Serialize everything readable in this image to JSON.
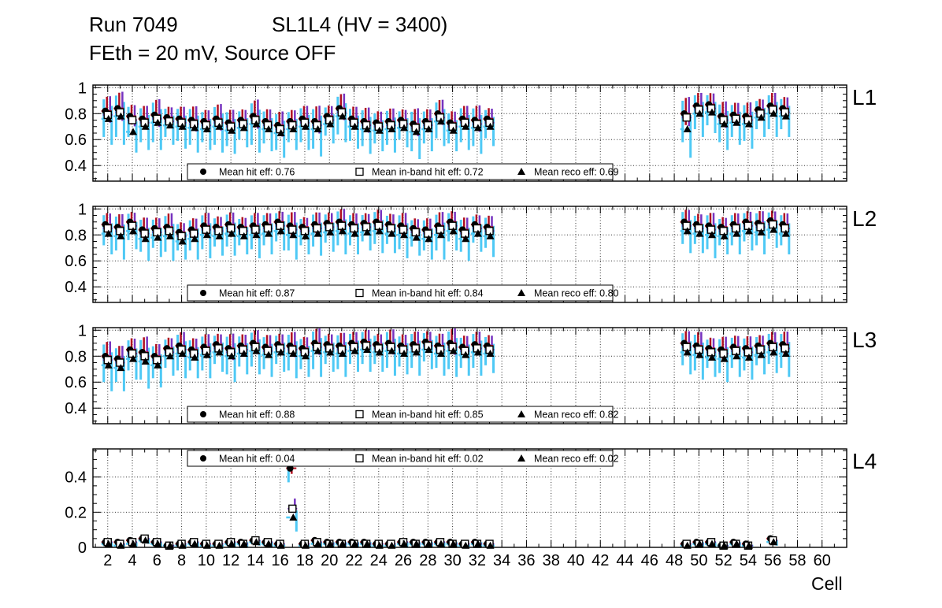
{
  "header": {
    "run_title": "Run 7049",
    "layer_title": "SL1L4 (HV = 3400)",
    "condition_line": "FEth = 20 mV, Source OFF"
  },
  "axes": {
    "x_label": "Cell",
    "x_range": [
      0.8,
      62
    ],
    "x_ticks": [
      2,
      4,
      6,
      8,
      10,
      12,
      14,
      16,
      18,
      20,
      22,
      24,
      26,
      28,
      30,
      32,
      34,
      36,
      38,
      40,
      42,
      44,
      46,
      48,
      50,
      52,
      54,
      56,
      58,
      60
    ]
  },
  "colors": {
    "hit_errbar": "#b01020",
    "inband_errbar": "#7632bf",
    "reco_errbar": "#4ec9f5",
    "marker": "#000000",
    "grid": "#333333",
    "frame": "#000000"
  },
  "legend_markers": {
    "hit": "filled-circle",
    "inband": "open-square",
    "reco": "filled-triangle"
  },
  "chart_data": [
    {
      "type": "scatter",
      "label": "L1",
      "legend": {
        "hit": "Mean hit  eff: 0.76",
        "inband": "Mean in-band hit eff: 0.72",
        "reco": "Mean reco eff: 0.69"
      },
      "legend_position": "bottom",
      "y_range": [
        0.28,
        1.02
      ],
      "y_tick_values": [
        0.4,
        0.6,
        0.8,
        1
      ],
      "y_tick_labels": [
        "0.4",
        "0.6",
        "0.8",
        "1"
      ],
      "cells": [
        2,
        3,
        4,
        5,
        6,
        7,
        8,
        9,
        10,
        11,
        12,
        13,
        14,
        15,
        16,
        17,
        18,
        19,
        20,
        21,
        22,
        23,
        24,
        25,
        26,
        27,
        28,
        29,
        30,
        31,
        32,
        33,
        49,
        50,
        51,
        52,
        53,
        54,
        55,
        56,
        57
      ],
      "hit": [
        0.82,
        0.84,
        0.78,
        0.76,
        0.79,
        0.77,
        0.76,
        0.75,
        0.74,
        0.76,
        0.73,
        0.75,
        0.78,
        0.74,
        0.71,
        0.74,
        0.76,
        0.74,
        0.78,
        0.84,
        0.76,
        0.74,
        0.73,
        0.74,
        0.75,
        0.72,
        0.74,
        0.8,
        0.73,
        0.76,
        0.75,
        0.76,
        0.8,
        0.86,
        0.87,
        0.78,
        0.79,
        0.78,
        0.83,
        0.86,
        0.84
      ],
      "inband": [
        0.79,
        0.81,
        0.75,
        0.73,
        0.76,
        0.74,
        0.73,
        0.72,
        0.71,
        0.73,
        0.7,
        0.72,
        0.75,
        0.71,
        0.68,
        0.71,
        0.73,
        0.71,
        0.75,
        0.81,
        0.73,
        0.71,
        0.7,
        0.71,
        0.72,
        0.69,
        0.71,
        0.77,
        0.7,
        0.73,
        0.72,
        0.73,
        0.77,
        0.83,
        0.84,
        0.75,
        0.76,
        0.75,
        0.8,
        0.83,
        0.81
      ],
      "reco": [
        0.76,
        0.78,
        0.66,
        0.7,
        0.73,
        0.71,
        0.7,
        0.69,
        0.68,
        0.7,
        0.67,
        0.69,
        0.72,
        0.68,
        0.65,
        0.68,
        0.7,
        0.68,
        0.72,
        0.78,
        0.7,
        0.68,
        0.67,
        0.68,
        0.69,
        0.66,
        0.68,
        0.74,
        0.67,
        0.7,
        0.69,
        0.7,
        0.68,
        0.8,
        0.81,
        0.72,
        0.73,
        0.72,
        0.77,
        0.8,
        0.78
      ],
      "err": [
        0.2,
        0.22,
        0.16,
        0.18,
        0.21,
        0.15,
        0.17,
        0.19,
        0.16,
        0.2,
        0.18,
        0.15,
        0.22,
        0.17,
        0.19,
        0.16,
        0.18,
        0.21,
        0.15,
        0.2,
        0.17,
        0.19,
        0.16,
        0.18,
        0.15,
        0.21,
        0.17,
        0.19,
        0.16,
        0.18,
        0.2,
        0.15,
        0.22,
        0.18,
        0.16,
        0.2,
        0.17,
        0.19,
        0.15,
        0.18,
        0.16
      ]
    },
    {
      "type": "scatter",
      "label": "L2",
      "legend": {
        "hit": "Mean hit  eff: 0.87",
        "inband": "Mean in-band hit eff: 0.84",
        "reco": "Mean reco eff: 0.80"
      },
      "legend_position": "bottom",
      "y_range": [
        0.28,
        1.02
      ],
      "y_tick_values": [
        0.4,
        0.6,
        0.8,
        1
      ],
      "y_tick_labels": [
        "0.4",
        "0.6",
        "0.8",
        "1"
      ],
      "cells": [
        2,
        3,
        4,
        5,
        6,
        7,
        8,
        9,
        10,
        11,
        12,
        13,
        14,
        15,
        16,
        17,
        18,
        19,
        20,
        21,
        22,
        23,
        24,
        25,
        26,
        27,
        28,
        29,
        30,
        31,
        32,
        33,
        49,
        50,
        51,
        52,
        53,
        54,
        55,
        56,
        57
      ],
      "hit": [
        0.88,
        0.86,
        0.9,
        0.84,
        0.85,
        0.86,
        0.82,
        0.84,
        0.87,
        0.86,
        0.88,
        0.86,
        0.87,
        0.88,
        0.9,
        0.87,
        0.86,
        0.88,
        0.89,
        0.9,
        0.88,
        0.89,
        0.9,
        0.88,
        0.87,
        0.85,
        0.84,
        0.87,
        0.9,
        0.84,
        0.88,
        0.86,
        0.9,
        0.88,
        0.87,
        0.86,
        0.88,
        0.9,
        0.89,
        0.91,
        0.88
      ],
      "inband": [
        0.85,
        0.83,
        0.87,
        0.81,
        0.82,
        0.83,
        0.79,
        0.81,
        0.84,
        0.83,
        0.85,
        0.83,
        0.84,
        0.85,
        0.87,
        0.84,
        0.83,
        0.85,
        0.86,
        0.87,
        0.85,
        0.86,
        0.87,
        0.85,
        0.84,
        0.82,
        0.81,
        0.84,
        0.87,
        0.81,
        0.85,
        0.83,
        0.87,
        0.85,
        0.84,
        0.83,
        0.85,
        0.87,
        0.86,
        0.88,
        0.85
      ],
      "reco": [
        0.81,
        0.79,
        0.83,
        0.77,
        0.78,
        0.79,
        0.75,
        0.77,
        0.8,
        0.79,
        0.81,
        0.79,
        0.8,
        0.81,
        0.83,
        0.8,
        0.79,
        0.81,
        0.82,
        0.83,
        0.81,
        0.82,
        0.83,
        0.81,
        0.8,
        0.78,
        0.77,
        0.8,
        0.83,
        0.77,
        0.81,
        0.79,
        0.83,
        0.81,
        0.8,
        0.79,
        0.81,
        0.83,
        0.82,
        0.84,
        0.81
      ],
      "err": [
        0.16,
        0.18,
        0.14,
        0.17,
        0.15,
        0.19,
        0.14,
        0.16,
        0.18,
        0.15,
        0.17,
        0.14,
        0.18,
        0.16,
        0.15,
        0.19,
        0.14,
        0.17,
        0.15,
        0.18,
        0.16,
        0.14,
        0.17,
        0.15,
        0.18,
        0.14,
        0.16,
        0.19,
        0.15,
        0.17,
        0.14,
        0.16,
        0.17,
        0.15,
        0.18,
        0.14,
        0.16,
        0.15,
        0.17,
        0.14,
        0.16
      ]
    },
    {
      "type": "scatter",
      "label": "L3",
      "legend": {
        "hit": "Mean hit  eff: 0.88",
        "inband": "Mean in-band hit eff: 0.85",
        "reco": "Mean reco eff: 0.82"
      },
      "legend_position": "bottom",
      "y_range": [
        0.28,
        1.02
      ],
      "y_tick_values": [
        0.4,
        0.6,
        0.8,
        1
      ],
      "y_tick_labels": [
        "0.4",
        "0.6",
        "0.8",
        "1"
      ],
      "cells": [
        2,
        3,
        4,
        5,
        6,
        7,
        8,
        9,
        10,
        11,
        12,
        13,
        14,
        15,
        16,
        17,
        18,
        19,
        20,
        21,
        22,
        23,
        24,
        25,
        26,
        27,
        28,
        29,
        30,
        31,
        32,
        33,
        49,
        50,
        51,
        52,
        53,
        54,
        55,
        56,
        57
      ],
      "hit": [
        0.8,
        0.78,
        0.85,
        0.83,
        0.8,
        0.86,
        0.88,
        0.85,
        0.87,
        0.89,
        0.86,
        0.88,
        0.9,
        0.87,
        0.89,
        0.88,
        0.86,
        0.9,
        0.89,
        0.88,
        0.9,
        0.91,
        0.89,
        0.9,
        0.88,
        0.89,
        0.91,
        0.88,
        0.9,
        0.87,
        0.89,
        0.88,
        0.9,
        0.88,
        0.86,
        0.85,
        0.87,
        0.86,
        0.88,
        0.9,
        0.89
      ],
      "inband": [
        0.77,
        0.75,
        0.82,
        0.8,
        0.77,
        0.83,
        0.85,
        0.82,
        0.84,
        0.86,
        0.83,
        0.85,
        0.87,
        0.84,
        0.86,
        0.85,
        0.83,
        0.87,
        0.86,
        0.85,
        0.87,
        0.88,
        0.86,
        0.87,
        0.85,
        0.86,
        0.88,
        0.85,
        0.87,
        0.84,
        0.86,
        0.85,
        0.87,
        0.85,
        0.83,
        0.82,
        0.84,
        0.83,
        0.85,
        0.87,
        0.86
      ],
      "reco": [
        0.73,
        0.71,
        0.78,
        0.76,
        0.73,
        0.8,
        0.82,
        0.79,
        0.81,
        0.83,
        0.8,
        0.82,
        0.84,
        0.81,
        0.83,
        0.82,
        0.8,
        0.84,
        0.83,
        0.82,
        0.84,
        0.85,
        0.83,
        0.84,
        0.82,
        0.83,
        0.85,
        0.82,
        0.84,
        0.81,
        0.83,
        0.82,
        0.83,
        0.81,
        0.79,
        0.78,
        0.8,
        0.79,
        0.81,
        0.83,
        0.82
      ],
      "err": [
        0.2,
        0.18,
        0.16,
        0.21,
        0.17,
        0.15,
        0.19,
        0.16,
        0.18,
        0.15,
        0.2,
        0.16,
        0.18,
        0.17,
        0.15,
        0.19,
        0.16,
        0.2,
        0.15,
        0.18,
        0.16,
        0.17,
        0.15,
        0.19,
        0.16,
        0.18,
        0.15,
        0.17,
        0.2,
        0.16,
        0.18,
        0.15,
        0.17,
        0.19,
        0.15,
        0.18,
        0.16,
        0.17,
        0.15,
        0.16,
        0.18
      ]
    },
    {
      "type": "scatter",
      "label": "L4",
      "legend": {
        "hit": "Mean hit  eff: 0.04",
        "inband": "Mean in-band hit eff: 0.02",
        "reco": "Mean reco eff: 0.02"
      },
      "legend_position": "top",
      "y_range": [
        0,
        0.56
      ],
      "y_tick_values": [
        0,
        0.2,
        0.4
      ],
      "y_tick_labels": [
        "0",
        "0.2",
        "0.4"
      ],
      "cells": [
        2,
        3,
        4,
        5,
        6,
        7,
        8,
        9,
        10,
        11,
        12,
        13,
        14,
        15,
        16,
        17,
        18,
        19,
        20,
        21,
        22,
        23,
        24,
        25,
        26,
        27,
        28,
        29,
        30,
        31,
        32,
        33,
        49,
        50,
        51,
        52,
        53,
        54,
        56
      ],
      "hit": [
        0.03,
        0.03,
        0.04,
        0.05,
        0.03,
        0.01,
        0.02,
        0.03,
        0.02,
        0.02,
        0.03,
        0.03,
        0.04,
        0.03,
        0.02,
        0.45,
        0.02,
        0.04,
        0.03,
        0.03,
        0.03,
        0.03,
        0.02,
        0.02,
        0.03,
        0.03,
        0.03,
        0.03,
        0.03,
        0.02,
        0.03,
        0.02,
        0.02,
        0.03,
        0.03,
        0.01,
        0.03,
        0.02,
        0.05
      ],
      "inband": [
        0.03,
        0.02,
        0.03,
        0.05,
        0.03,
        0.01,
        0.02,
        0.03,
        0.02,
        0.02,
        0.03,
        0.02,
        0.04,
        0.03,
        0.02,
        0.22,
        0.02,
        0.03,
        0.02,
        0.02,
        0.02,
        0.02,
        0.02,
        0.02,
        0.03,
        0.02,
        0.02,
        0.03,
        0.02,
        0.02,
        0.02,
        0.02,
        0.02,
        0.02,
        0.03,
        0.01,
        0.02,
        0.01,
        0.04
      ],
      "reco": [
        0.02,
        0.01,
        0.02,
        0.04,
        0.02,
        0.01,
        0.01,
        0.02,
        0.01,
        0.01,
        0.02,
        0.02,
        0.03,
        0.02,
        0.01,
        0.17,
        0.01,
        0.02,
        0.02,
        0.02,
        0.02,
        0.02,
        0.01,
        0.01,
        0.02,
        0.02,
        0.02,
        0.02,
        0.02,
        0.01,
        0.02,
        0.01,
        0.01,
        0.02,
        0.02,
        0.01,
        0.02,
        0.01,
        0.03
      ],
      "err": [
        0.02,
        0.02,
        0.02,
        0.02,
        0.02,
        0.01,
        0.01,
        0.02,
        0.01,
        0.01,
        0.02,
        0.02,
        0.02,
        0.02,
        0.01,
        0.08,
        0.01,
        0.02,
        0.02,
        0.02,
        0.02,
        0.02,
        0.01,
        0.01,
        0.02,
        0.02,
        0.02,
        0.02,
        0.02,
        0.01,
        0.02,
        0.01,
        0.01,
        0.02,
        0.02,
        0.01,
        0.02,
        0.01,
        0.02
      ]
    }
  ]
}
